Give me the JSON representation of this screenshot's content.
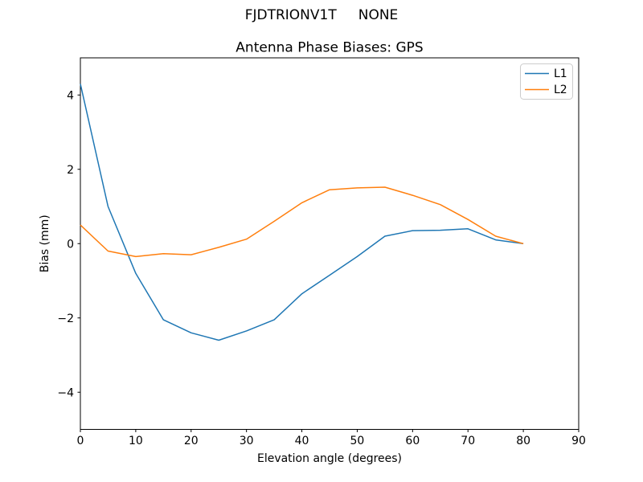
{
  "figure": {
    "suptitle": "FJDTRIONV1T     NONE",
    "background": "#ffffff"
  },
  "chart_data": {
    "type": "line",
    "title": "Antenna Phase Biases: GPS",
    "xlabel": "Elevation angle (degrees)",
    "ylabel": "Bias (mm)",
    "xlim": [
      0,
      90
    ],
    "ylim": [
      -5,
      5
    ],
    "xticks": [
      0,
      10,
      20,
      30,
      40,
      50,
      60,
      70,
      80,
      90
    ],
    "xtick_labels": [
      "0",
      "10",
      "20",
      "30",
      "40",
      "50",
      "60",
      "70",
      "80",
      "90"
    ],
    "yticks": [
      -4,
      -2,
      0,
      2,
      4
    ],
    "ytick_labels": [
      "−4",
      "−2",
      "0",
      "2",
      "4"
    ],
    "grid": false,
    "legend_position": "upper right",
    "x": [
      0,
      5,
      10,
      15,
      20,
      25,
      30,
      35,
      40,
      45,
      50,
      55,
      60,
      65,
      70,
      75,
      80
    ],
    "series": [
      {
        "name": "L1",
        "color": "#1f77b4",
        "values": [
          4.3,
          1.0,
          -0.8,
          -2.05,
          -2.4,
          -2.6,
          -2.35,
          -2.05,
          -1.35,
          -0.85,
          -0.35,
          0.2,
          0.35,
          0.36,
          0.4,
          0.1,
          0.0
        ]
      },
      {
        "name": "L2",
        "color": "#ff7f0e",
        "values": [
          0.5,
          -0.2,
          -0.35,
          -0.27,
          -0.3,
          -0.1,
          0.12,
          0.6,
          1.1,
          1.45,
          1.5,
          1.52,
          1.3,
          1.05,
          0.65,
          0.2,
          0.0
        ]
      }
    ],
    "axis_color": "#000000",
    "legend_frame_color": "#cccccc"
  }
}
